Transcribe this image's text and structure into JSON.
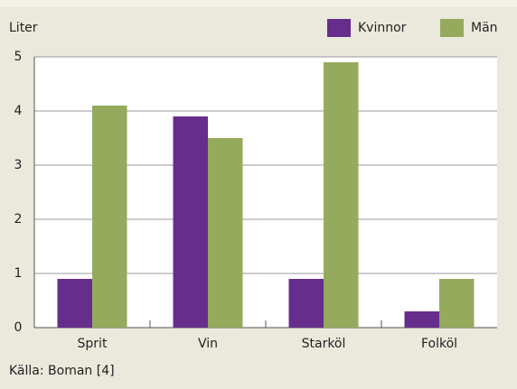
{
  "chart_data": {
    "type": "bar",
    "y_label": "Liter",
    "categories": [
      "Sprit",
      "Vin",
      "Starköl",
      "Folköl"
    ],
    "series": [
      {
        "name": "Kvinnor",
        "color": "#662d8c",
        "values": [
          0.9,
          3.9,
          0.9,
          0.3
        ]
      },
      {
        "name": "Män",
        "color": "#95aa5c",
        "values": [
          4.1,
          3.5,
          4.9,
          0.9
        ]
      }
    ],
    "ylim": [
      0,
      5
    ],
    "yticks": [
      0,
      1,
      2,
      3,
      4,
      5
    ],
    "grid": true,
    "legend": "top-right",
    "source": "Källa: Boman [4]"
  }
}
